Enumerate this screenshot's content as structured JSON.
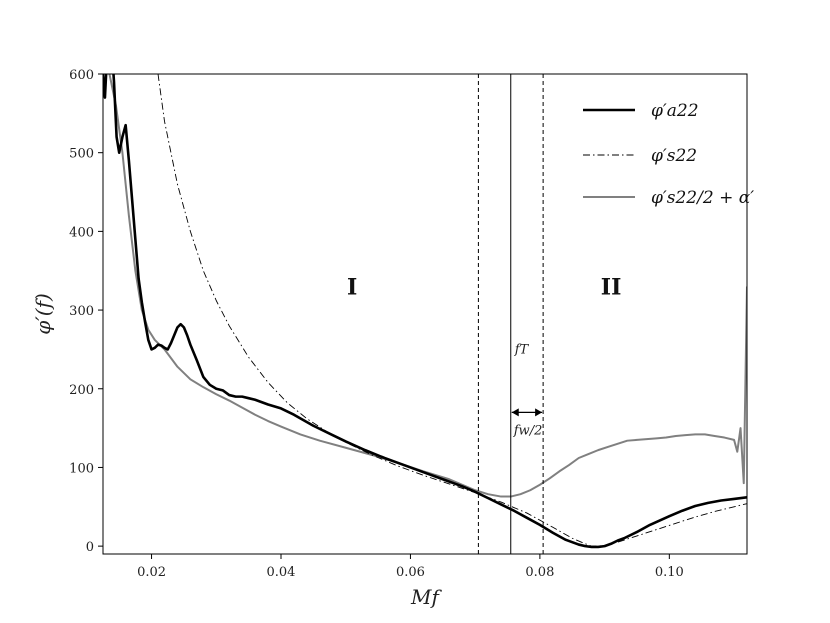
{
  "chart_data": {
    "type": "line",
    "xlabel": "Mf",
    "ylabel": "φ′(f)",
    "xlim": [
      0.0125,
      0.112
    ],
    "ylim": [
      -10,
      600
    ],
    "x_ticks": [
      0.02,
      0.04,
      0.06,
      0.08,
      0.1
    ],
    "x_tick_labels": [
      "0.02",
      "0.04",
      "0.06",
      "0.08",
      "0.10"
    ],
    "y_ticks": [
      0,
      100,
      200,
      300,
      400,
      500,
      600
    ],
    "y_tick_labels": [
      "0",
      "100",
      "200",
      "300",
      "400",
      "500",
      "600"
    ],
    "grid": false,
    "legend_position": "top-right",
    "legend": [
      {
        "label": "φ′a22",
        "style": "solid-black"
      },
      {
        "label": "φ′s22",
        "style": "dashdot-black"
      },
      {
        "label": "φ′s22/2 + α′",
        "style": "solid-gray"
      }
    ],
    "regions": [
      {
        "label": "I",
        "x": 0.051,
        "y": 330
      },
      {
        "label": "II",
        "x": 0.091,
        "y": 330
      }
    ],
    "vertical_lines": [
      {
        "x": 0.0705,
        "style": "dashed"
      },
      {
        "x": 0.0755,
        "style": "solid",
        "label": "fT"
      },
      {
        "x": 0.0805,
        "style": "dashed"
      }
    ],
    "width_annotation": {
      "x_from": 0.0755,
      "x_to": 0.0805,
      "y": 170,
      "label": "fw/2"
    },
    "series": [
      {
        "name": "φ′a22",
        "color": "#000000",
        "x": [
          0.0125,
          0.0128,
          0.0131,
          0.0134,
          0.0138,
          0.0142,
          0.0146,
          0.015,
          0.0155,
          0.016,
          0.0165,
          0.017,
          0.0175,
          0.018,
          0.0185,
          0.019,
          0.0195,
          0.02,
          0.0205,
          0.021,
          0.0215,
          0.022,
          0.0225,
          0.023,
          0.0235,
          0.024,
          0.0245,
          0.025,
          0.0255,
          0.026,
          0.027,
          0.028,
          0.029,
          0.03,
          0.031,
          0.032,
          0.033,
          0.034,
          0.035,
          0.036,
          0.038,
          0.04,
          0.042,
          0.045,
          0.048,
          0.05,
          0.053,
          0.056,
          0.059,
          0.062,
          0.065,
          0.068,
          0.07,
          0.072,
          0.074,
          0.076,
          0.078,
          0.08,
          0.082,
          0.084,
          0.086,
          0.087,
          0.088,
          0.089,
          0.09,
          0.091,
          0.092,
          0.093,
          0.095,
          0.097,
          0.1,
          0.102,
          0.104,
          0.106,
          0.108,
          0.11,
          0.112
        ],
        "y": [
          600,
          570,
          620,
          610,
          640,
          590,
          520,
          500,
          520,
          535,
          490,
          440,
          390,
          340,
          310,
          285,
          262,
          250,
          252,
          256,
          255,
          252,
          250,
          258,
          268,
          278,
          282,
          278,
          268,
          256,
          236,
          215,
          205,
          200,
          198,
          192,
          190,
          190,
          188,
          186,
          180,
          175,
          167,
          153,
          141,
          133,
          122,
          112,
          103,
          94,
          85,
          76,
          69,
          61,
          53,
          45,
          36,
          27,
          17,
          8,
          2,
          0,
          -1,
          -1,
          0,
          3,
          7,
          10,
          18,
          27,
          38,
          45,
          51,
          55,
          58,
          60,
          62
        ]
      },
      {
        "name": "φ′s22",
        "color": "#000000",
        "x": [
          0.021,
          0.022,
          0.024,
          0.026,
          0.028,
          0.03,
          0.032,
          0.035,
          0.038,
          0.041,
          0.044,
          0.047,
          0.05,
          0.054,
          0.058,
          0.062,
          0.066,
          0.07,
          0.074,
          0.078,
          0.082,
          0.085,
          0.087,
          0.088,
          0.089,
          0.09,
          0.092,
          0.095,
          0.098,
          0.101,
          0.104,
          0.107,
          0.11,
          0.112
        ],
        "y": [
          600,
          540,
          460,
          400,
          350,
          312,
          280,
          240,
          208,
          182,
          162,
          146,
          132,
          116,
          102,
          90,
          79,
          68,
          56,
          42,
          24,
          10,
          3,
          0,
          0,
          1,
          5,
          13,
          21,
          29,
          37,
          44,
          50,
          54
        ]
      },
      {
        "name": "φ′s22/2 + α′",
        "color": "#808080",
        "x": [
          0.0125,
          0.0135,
          0.0145,
          0.0155,
          0.0165,
          0.0175,
          0.0185,
          0.0195,
          0.0205,
          0.022,
          0.024,
          0.026,
          0.028,
          0.03,
          0.032,
          0.034,
          0.036,
          0.038,
          0.04,
          0.043,
          0.046,
          0.05,
          0.054,
          0.058,
          0.062,
          0.066,
          0.07,
          0.072,
          0.074,
          0.0755,
          0.077,
          0.0785,
          0.08,
          0.0815,
          0.083,
          0.0845,
          0.086,
          0.0875,
          0.089,
          0.0905,
          0.092,
          0.0935,
          0.095,
          0.0965,
          0.098,
          0.0995,
          0.101,
          0.1025,
          0.104,
          0.1055,
          0.107,
          0.1085,
          0.11,
          0.1105,
          0.111,
          0.1115,
          0.112
        ],
        "y": [
          650,
          600,
          560,
          500,
          420,
          350,
          300,
          275,
          262,
          250,
          228,
          212,
          202,
          193,
          185,
          176,
          167,
          159,
          152,
          142,
          134,
          125,
          116,
          106,
          95,
          85,
          71,
          66,
          63,
          63,
          66,
          71,
          78,
          86,
          95,
          103,
          112,
          117,
          122,
          126,
          130,
          134,
          135,
          136,
          137,
          138,
          140,
          141,
          142,
          142,
          140,
          138,
          135,
          120,
          150,
          80,
          330
        ]
      }
    ]
  }
}
